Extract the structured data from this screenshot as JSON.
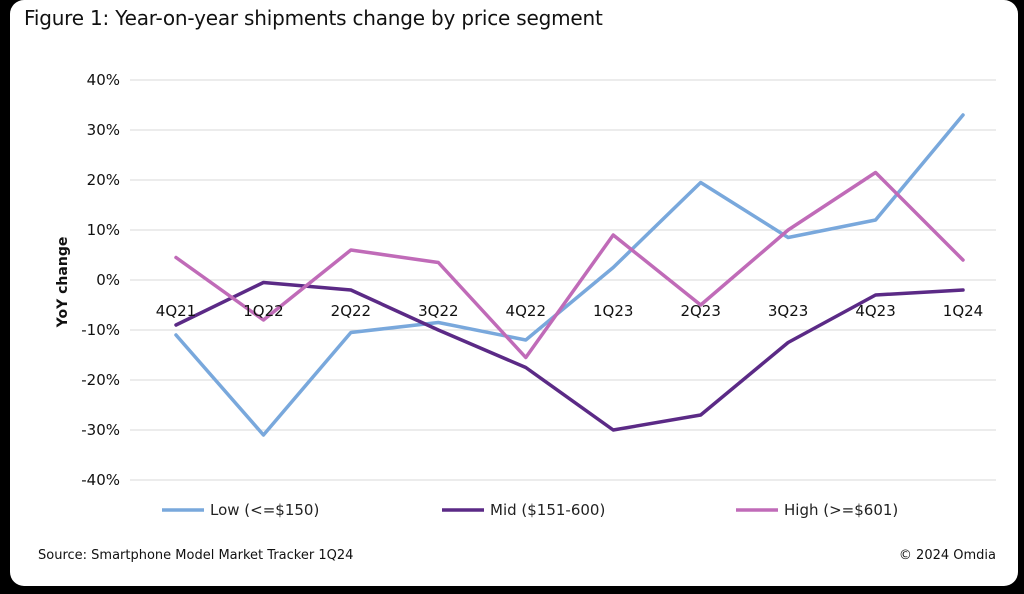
{
  "figure_title": "Figure 1: Year-on-year shipments change by price segment",
  "source": "Source: Smartphone Model Market Tracker 1Q24",
  "copyright": "© 2024 Omdia",
  "chart_data": {
    "type": "line",
    "title": "Figure 1: Year-on-year shipments change by price segment",
    "xlabel": "",
    "ylabel": "YoY change",
    "ylim": [
      -40,
      40
    ],
    "y_ticks": [
      "40%",
      "30%",
      "20%",
      "10%",
      "0%",
      "-10%",
      "-20%",
      "-30%",
      "-40%"
    ],
    "y_tick_values": [
      40,
      30,
      20,
      10,
      0,
      -10,
      -20,
      -30,
      -40
    ],
    "grid": true,
    "legend_position": "bottom",
    "categories": [
      "4Q21",
      "1Q22",
      "2Q22",
      "3Q22",
      "4Q22",
      "1Q23",
      "2Q23",
      "3Q23",
      "4Q23",
      "1Q24"
    ],
    "series": [
      {
        "name": "Low (<=$150)",
        "color": "#79a8dc",
        "values": [
          -11,
          -31,
          -10.5,
          -8.5,
          -12,
          2.5,
          19.5,
          8.5,
          12,
          33
        ]
      },
      {
        "name": "Mid ($151-600)",
        "color": "#5b2a86",
        "values": [
          -9,
          -0.5,
          -2,
          -10,
          -17.5,
          -30,
          -27,
          -12.5,
          -3,
          -2
        ]
      },
      {
        "name": "High (>=$601)",
        "color": "#c06bb8",
        "values": [
          4.5,
          -8,
          6,
          3.5,
          -15.5,
          9,
          -5,
          10,
          21.5,
          4
        ]
      }
    ]
  }
}
